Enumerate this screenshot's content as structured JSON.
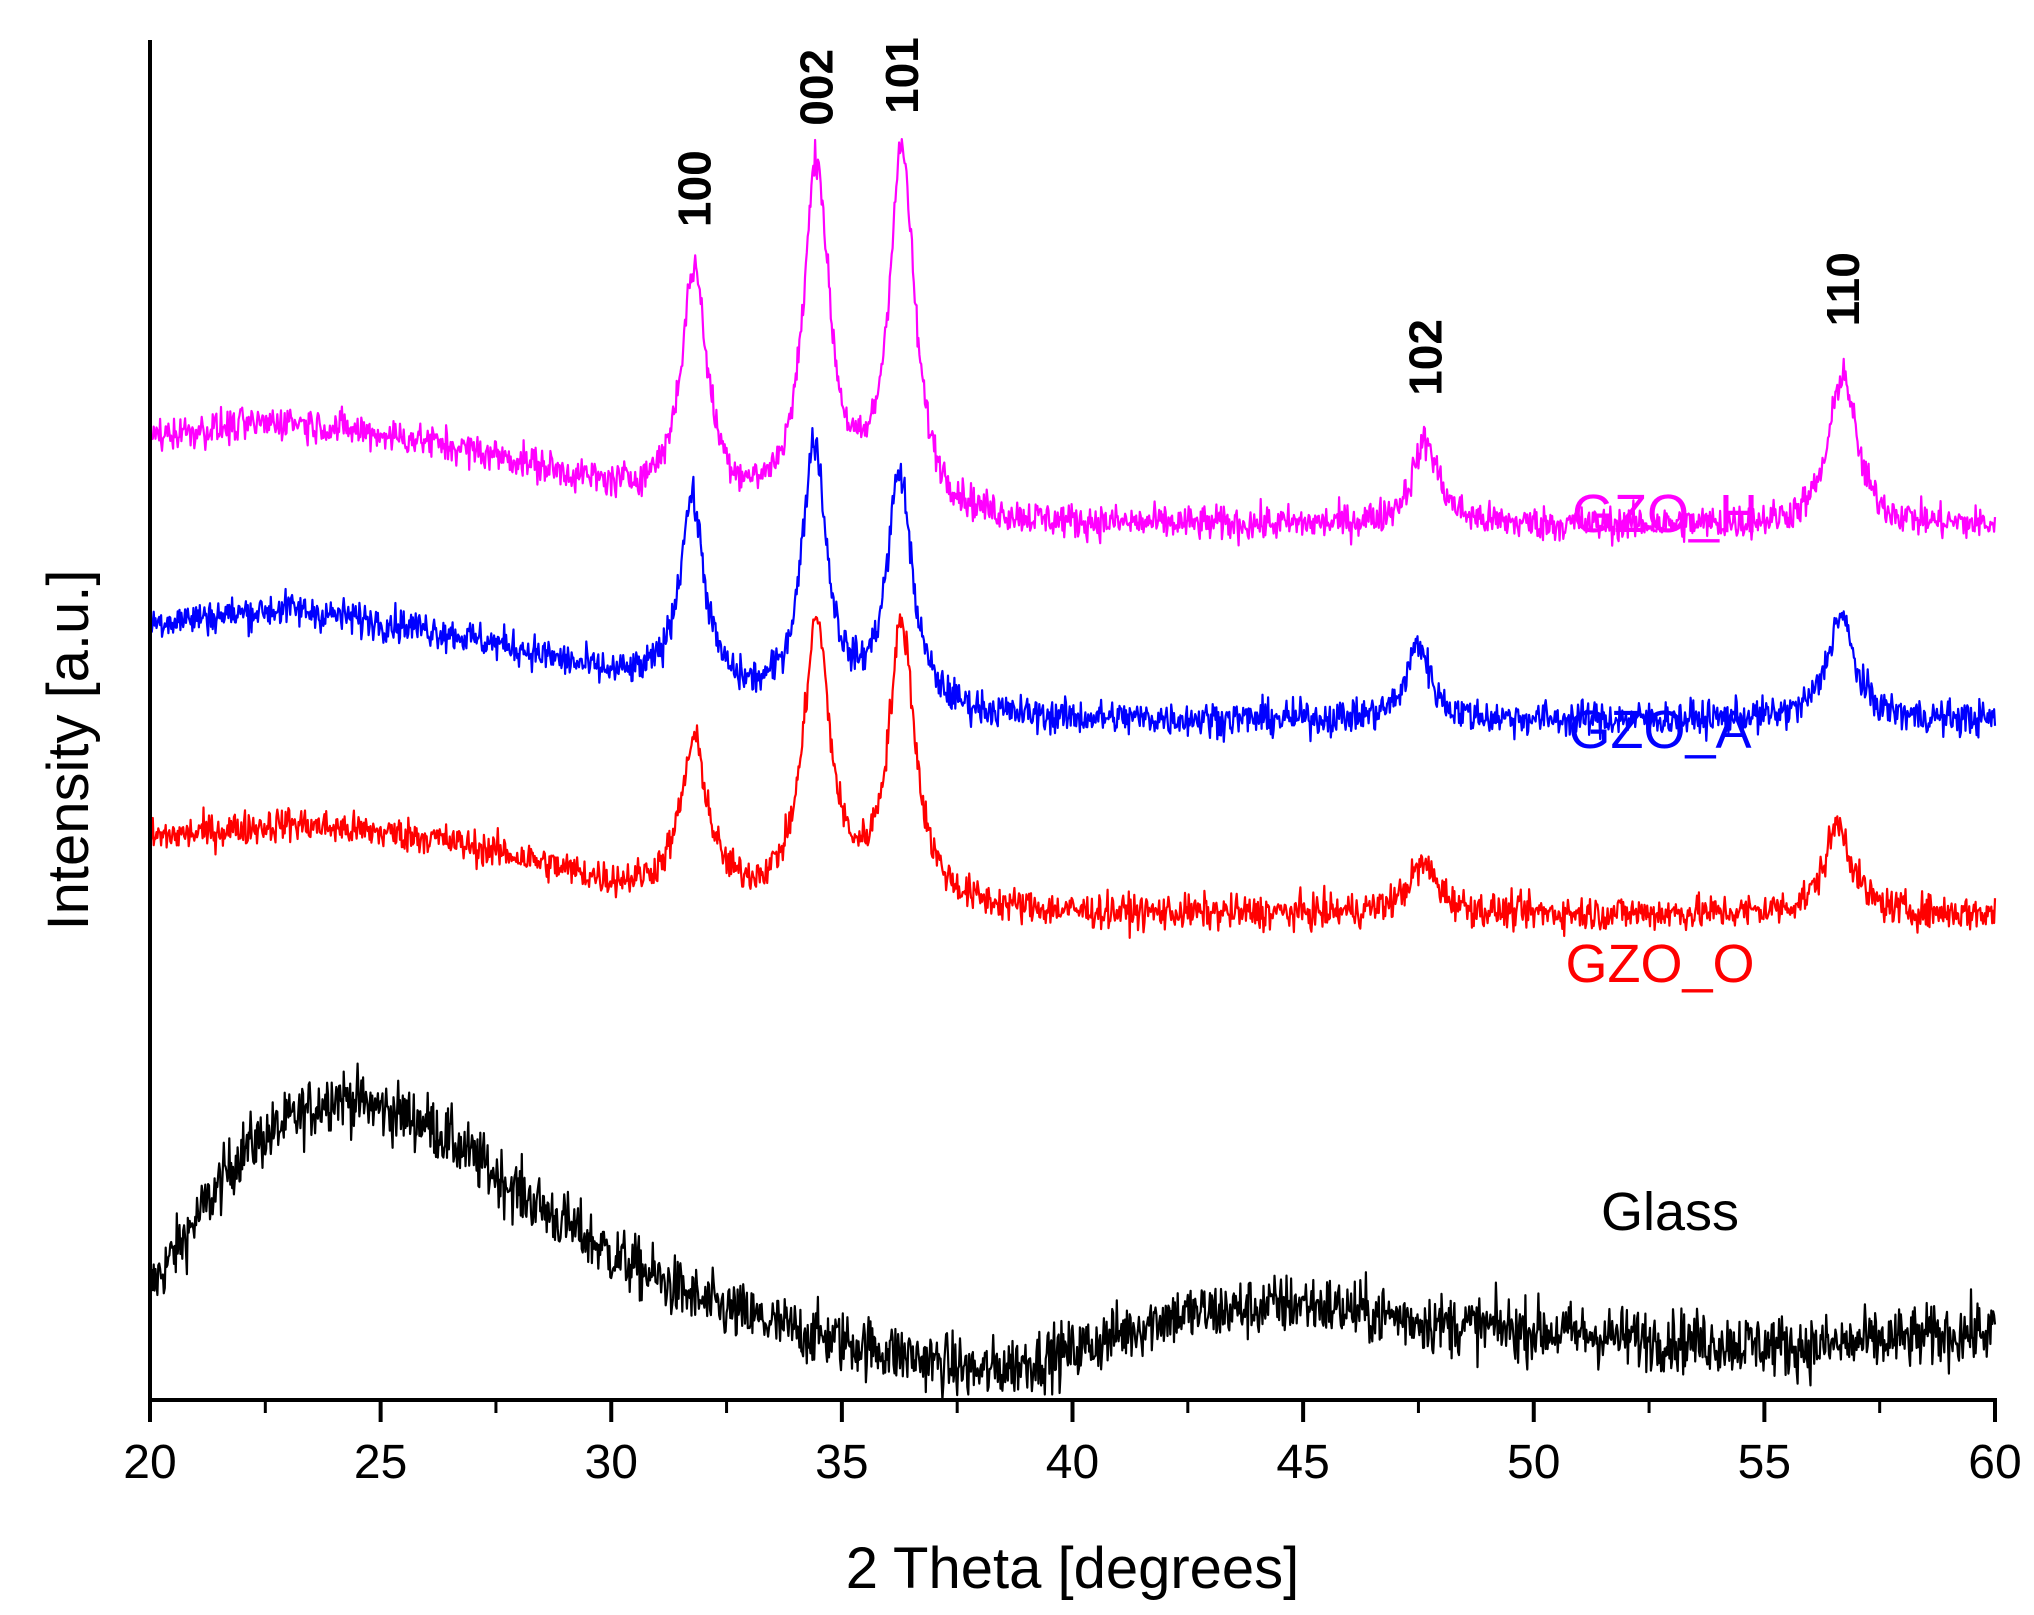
{
  "chart_data": {
    "type": "line",
    "title": "",
    "xlabel": "2 Theta [degrees]",
    "ylabel": "Intensity [a.u.]",
    "xlim": [
      20,
      60
    ],
    "xticks": [
      20,
      25,
      30,
      35,
      40,
      45,
      50,
      55,
      60
    ],
    "xtick_labels": [
      "20",
      "25",
      "30",
      "35",
      "40",
      "45",
      "50",
      "55",
      "60"
    ],
    "minor_xtick_step": 2.5,
    "y_ticks_shown": false,
    "grid": false,
    "series": [
      {
        "name": "Glass",
        "label": "Glass",
        "color": "#000000",
        "offset": 0,
        "noise": 1.6,
        "profile": [
          [
            20,
            5
          ],
          [
            22,
            15
          ],
          [
            24,
            19
          ],
          [
            26,
            17
          ],
          [
            28,
            12
          ],
          [
            30,
            7.5
          ],
          [
            32,
            4
          ],
          [
            34,
            2
          ],
          [
            36,
            0.5
          ],
          [
            38,
            -1
          ],
          [
            40,
            0.5
          ],
          [
            42,
            3
          ],
          [
            45,
            4
          ],
          [
            48,
            2.5
          ],
          [
            52,
            1.5
          ],
          [
            56,
            0.8
          ],
          [
            60,
            2
          ]
        ],
        "peaks": []
      },
      {
        "name": "GZO_O",
        "label": "GZO_O",
        "color": "#ff0000",
        "offset": 32,
        "noise": 0.9,
        "profile": [
          [
            20,
            5.5
          ],
          [
            23,
            6.5
          ],
          [
            26,
            5.5
          ],
          [
            28,
            4
          ],
          [
            30,
            2
          ],
          [
            32,
            1
          ],
          [
            34,
            0.5
          ],
          [
            40,
            0
          ],
          [
            45,
            0
          ],
          [
            50,
            0
          ],
          [
            55,
            0
          ],
          [
            60,
            0
          ]
        ],
        "peaks": [
          {
            "hkl": "100",
            "pos": 31.8,
            "height": 11,
            "width": 0.35
          },
          {
            "hkl": "002",
            "pos": 34.45,
            "height": 20,
            "width": 0.35
          },
          {
            "hkl": "101",
            "pos": 36.3,
            "height": 20,
            "width": 0.35
          },
          {
            "hkl": "102",
            "pos": 47.6,
            "height": 3.5,
            "width": 0.4
          },
          {
            "hkl": "110",
            "pos": 56.6,
            "height": 6.5,
            "width": 0.35
          }
        ]
      },
      {
        "name": "GZO_A",
        "label": "GZO_A",
        "color": "#0000ff",
        "offset": 46,
        "noise": 0.9,
        "profile": [
          [
            20,
            7
          ],
          [
            23,
            8
          ],
          [
            26,
            6.5
          ],
          [
            28,
            5
          ],
          [
            30,
            3
          ],
          [
            32,
            1.5
          ],
          [
            34,
            0.5
          ],
          [
            40,
            0
          ],
          [
            45,
            0
          ],
          [
            50,
            0
          ],
          [
            55,
            0
          ],
          [
            60,
            0
          ]
        ],
        "peaks": [
          {
            "hkl": "100",
            "pos": 31.75,
            "height": 14,
            "width": 0.33
          },
          {
            "hkl": "002",
            "pos": 34.4,
            "height": 19,
            "width": 0.33
          },
          {
            "hkl": "101",
            "pos": 36.25,
            "height": 17,
            "width": 0.33
          },
          {
            "hkl": "102",
            "pos": 47.5,
            "height": 5.5,
            "width": 0.3
          },
          {
            "hkl": "110",
            "pos": 56.65,
            "height": 7.5,
            "width": 0.35
          }
        ]
      },
      {
        "name": "GZO_H",
        "label": "GZO_H",
        "color": "#ff00ff",
        "offset": 60,
        "noise": 0.9,
        "profile": [
          [
            20,
            6.5
          ],
          [
            23,
            7.5
          ],
          [
            26,
            6
          ],
          [
            28,
            4.5
          ],
          [
            30,
            2.5
          ],
          [
            32,
            1
          ],
          [
            34,
            0.5
          ],
          [
            40,
            0
          ],
          [
            45,
            0
          ],
          [
            50,
            0
          ],
          [
            55,
            0
          ],
          [
            60,
            0
          ]
        ],
        "peaks": [
          {
            "hkl": "100",
            "pos": 31.8,
            "height": 17,
            "width": 0.34
          },
          {
            "hkl": "002",
            "pos": 34.45,
            "height": 25,
            "width": 0.34
          },
          {
            "hkl": "101",
            "pos": 36.3,
            "height": 26,
            "width": 0.34
          },
          {
            "hkl": "102",
            "pos": 47.65,
            "height": 6,
            "width": 0.35
          },
          {
            "hkl": "110",
            "pos": 56.7,
            "height": 11,
            "width": 0.35
          }
        ]
      }
    ],
    "peak_annotations": [
      {
        "hkl": "100",
        "x": 31.8
      },
      {
        "hkl": "002",
        "x": 34.45
      },
      {
        "hkl": "101",
        "x": 36.3
      },
      {
        "hkl": "102",
        "x": 47.65
      },
      {
        "hkl": "110",
        "x": 56.7
      }
    ]
  }
}
